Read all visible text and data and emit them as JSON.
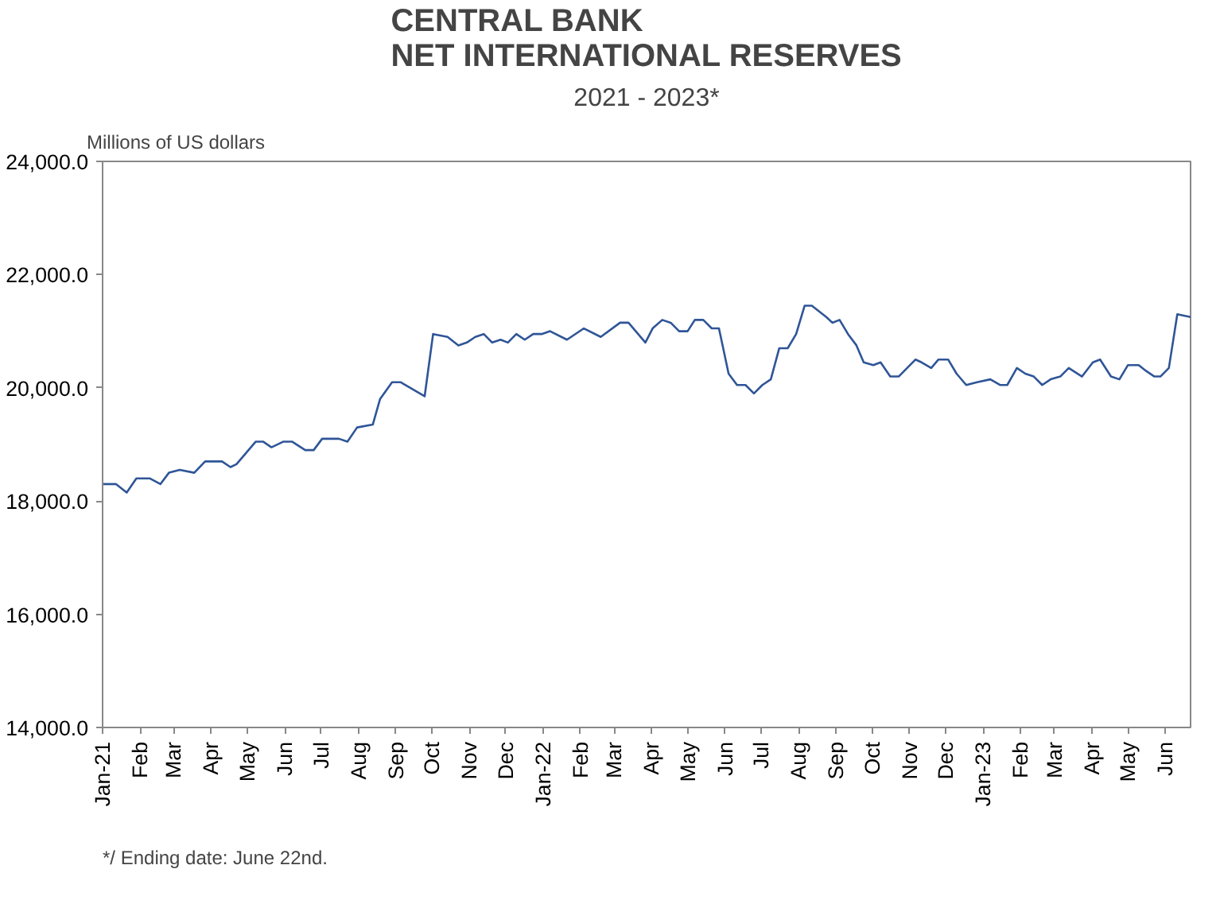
{
  "chart_data": {
    "type": "line",
    "title": "CENTRAL BANK\nNET INTERNATIONAL RESERVES",
    "subtitle": "2021 - 2023*",
    "ylabel": "Millions  of US dollars",
    "annotations": [
      "*/ Ending date: June 22nd."
    ],
    "x": [
      "2021-01-01",
      "2021-01-12",
      "2021-01-21",
      "2021-01-29",
      "2021-02-09",
      "2021-02-18",
      "2021-02-25",
      "2021-03-06",
      "2021-03-18",
      "2021-03-27",
      "2021-04-10",
      "2021-04-17",
      "2021-04-22",
      "2021-05-08",
      "2021-05-14",
      "2021-05-21",
      "2021-05-31",
      "2021-06-07",
      "2021-06-18",
      "2021-06-25",
      "2021-07-02",
      "2021-07-16",
      "2021-07-23",
      "2021-07-31",
      "2021-08-13",
      "2021-08-19",
      "2021-08-29",
      "2021-09-05",
      "2021-09-25",
      "2021-10-02",
      "2021-10-14",
      "2021-10-23",
      "2021-10-30",
      "2021-11-06",
      "2021-11-13",
      "2021-11-20",
      "2021-11-27",
      "2021-12-03",
      "2021-12-10",
      "2021-12-17",
      "2021-12-24",
      "2021-12-31",
      "2022-01-07",
      "2022-01-21",
      "2022-02-04",
      "2022-02-18",
      "2022-03-06",
      "2022-03-13",
      "2022-03-27",
      "2022-04-02",
      "2022-04-10",
      "2022-04-17",
      "2022-04-24",
      "2022-05-01",
      "2022-05-07",
      "2022-05-14",
      "2022-05-21",
      "2022-05-27",
      "2022-06-04",
      "2022-06-11",
      "2022-06-18",
      "2022-06-25",
      "2022-07-02",
      "2022-07-09",
      "2022-07-16",
      "2022-07-23",
      "2022-07-30",
      "2022-08-06",
      "2022-08-12",
      "2022-08-24",
      "2022-08-29",
      "2022-09-04",
      "2022-09-11",
      "2022-09-18",
      "2022-09-24",
      "2022-10-02",
      "2022-10-08",
      "2022-10-16",
      "2022-10-23",
      "2022-11-06",
      "2022-11-11",
      "2022-11-19",
      "2022-11-25",
      "2022-12-03",
      "2022-12-10",
      "2022-12-18",
      "2022-12-27",
      "2023-01-07",
      "2023-01-15",
      "2023-01-21",
      "2023-01-29",
      "2023-02-05",
      "2023-02-12",
      "2023-02-19",
      "2023-02-26",
      "2023-03-06",
      "2023-03-13",
      "2023-03-24",
      "2023-04-02",
      "2023-04-08",
      "2023-04-17",
      "2023-04-24",
      "2023-05-01",
      "2023-05-10",
      "2023-05-16",
      "2023-05-23",
      "2023-05-28",
      "2023-06-04",
      "2023-06-11",
      "2023-06-22"
    ],
    "series": [
      {
        "color": "#2f5597",
        "values": [
          18300,
          18300,
          18150,
          18400,
          18400,
          18300,
          18500,
          18550,
          18500,
          18700,
          18700,
          18600,
          18650,
          19050,
          19050,
          18950,
          19050,
          19050,
          18900,
          18900,
          19100,
          19100,
          19050,
          19300,
          19350,
          19800,
          20100,
          20100,
          19850,
          20950,
          20900,
          20750,
          20800,
          20900,
          20950,
          20800,
          20850,
          20800,
          20950,
          20850,
          20950,
          20950,
          21000,
          20850,
          21050,
          20900,
          21150,
          21150,
          20800,
          21050,
          21200,
          21150,
          21000,
          21000,
          21200,
          21200,
          21050,
          21050,
          20250,
          20050,
          20050,
          19900,
          20050,
          20150,
          20700,
          20700,
          20950,
          21450,
          21450,
          21250,
          21150,
          21200,
          20950,
          20750,
          20450,
          20400,
          20450,
          20200,
          20200,
          20500,
          20450,
          20350,
          20500,
          20500,
          20250,
          20050,
          20100,
          20150,
          20050,
          20050,
          20350,
          20250,
          20200,
          20050,
          20150,
          20200,
          20350,
          20200,
          20450,
          20500,
          20200,
          20150,
          20400,
          20400,
          20300,
          20200,
          20200,
          20350,
          21300,
          21250
        ]
      }
    ],
    "xlim": [
      "2021-01-01",
      "2023-06-22"
    ],
    "xticks": [
      {
        "value": "2021-01-01",
        "label": "Jan-21"
      },
      {
        "value": "2021-02-01",
        "label": "Feb"
      },
      {
        "value": "2021-03-01",
        "label": "Mar"
      },
      {
        "value": "2021-04-01",
        "label": "Apr"
      },
      {
        "value": "2021-05-01",
        "label": "May"
      },
      {
        "value": "2021-06-01",
        "label": "Jun"
      },
      {
        "value": "2021-07-01",
        "label": "Jul"
      },
      {
        "value": "2021-08-01",
        "label": "Aug"
      },
      {
        "value": "2021-09-01",
        "label": "Sep"
      },
      {
        "value": "2021-10-01",
        "label": "Oct"
      },
      {
        "value": "2021-11-01",
        "label": "Nov"
      },
      {
        "value": "2021-12-01",
        "label": "Dec"
      },
      {
        "value": "2022-01-01",
        "label": "Jan-22"
      },
      {
        "value": "2022-02-01",
        "label": "Feb"
      },
      {
        "value": "2022-03-01",
        "label": "Mar"
      },
      {
        "value": "2022-04-01",
        "label": "Apr"
      },
      {
        "value": "2022-05-01",
        "label": "May"
      },
      {
        "value": "2022-06-01",
        "label": "Jun"
      },
      {
        "value": "2022-07-01",
        "label": "Jul"
      },
      {
        "value": "2022-08-01",
        "label": "Aug"
      },
      {
        "value": "2022-09-01",
        "label": "Sep"
      },
      {
        "value": "2022-10-01",
        "label": "Oct"
      },
      {
        "value": "2022-11-01",
        "label": "Nov"
      },
      {
        "value": "2022-12-01",
        "label": "Dec"
      },
      {
        "value": "2023-01-01",
        "label": "Jan-23"
      },
      {
        "value": "2023-02-01",
        "label": "Feb"
      },
      {
        "value": "2023-03-01",
        "label": "Mar"
      },
      {
        "value": "2023-04-01",
        "label": "Apr"
      },
      {
        "value": "2023-05-01",
        "label": "May"
      },
      {
        "value": "2023-06-01",
        "label": "Jun"
      }
    ],
    "ylim": [
      14000,
      24000
    ],
    "yticks": [
      {
        "value": 14000,
        "label": "14,000.0"
      },
      {
        "value": 16000,
        "label": "16,000.0"
      },
      {
        "value": 18000,
        "label": "18,000.0"
      },
      {
        "value": 20000,
        "label": "20,000.0"
      },
      {
        "value": 22000,
        "label": "22,000.0"
      },
      {
        "value": 24000,
        "label": "24,000.0"
      }
    ],
    "grid": false,
    "marker": "none",
    "line_style": "solid"
  }
}
